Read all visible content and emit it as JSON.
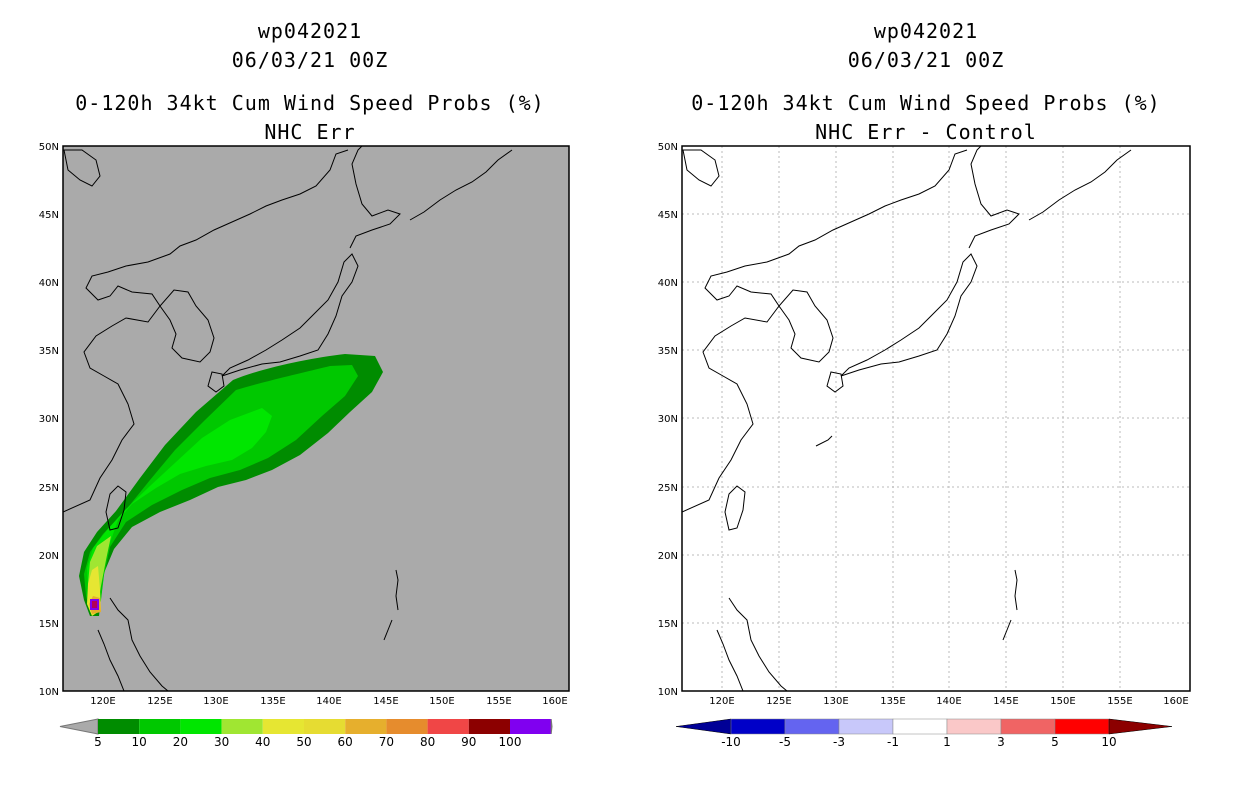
{
  "left": {
    "storm_id": "wp042021",
    "datetime": "06/03/21 00Z",
    "product": "0-120h 34kt Cum Wind Speed Probs (%)",
    "subtitle": "NHC Err",
    "lat_labels": [
      "50N",
      "45N",
      "40N",
      "35N",
      "30N",
      "25N",
      "20N",
      "15N",
      "10N"
    ],
    "lon_labels": [
      "120E",
      "125E",
      "130E",
      "135E",
      "140E",
      "145E",
      "150E",
      "155E",
      "160E"
    ],
    "colorbar": {
      "labels": [
        "5",
        "10",
        "20",
        "30",
        "40",
        "50",
        "60",
        "70",
        "80",
        "90",
        "100"
      ],
      "colors": [
        "#008c00",
        "#00c800",
        "#00e600",
        "#a0e632",
        "#e6e632",
        "#e6dc32",
        "#e6af2d",
        "#e68c2d",
        "#f04646",
        "#8c0000",
        "#8000f0"
      ],
      "end_color": "#aaaaaa"
    },
    "background": "#aaaaaa"
  },
  "right": {
    "storm_id": "wp042021",
    "datetime": "06/03/21 00Z",
    "product": "0-120h 34kt Cum Wind Speed Probs (%)",
    "subtitle": "NHC Err - Control",
    "lat_labels": [
      "50N",
      "45N",
      "40N",
      "35N",
      "30N",
      "25N",
      "20N",
      "15N",
      "10N"
    ],
    "lon_labels": [
      "120E",
      "125E",
      "130E",
      "135E",
      "140E",
      "145E",
      "150E",
      "155E",
      "160E"
    ],
    "colorbar": {
      "labels": [
        "-10",
        "-5",
        "-3",
        "-1",
        "1",
        "3",
        "5",
        "10"
      ],
      "colors": [
        "#0000c8",
        "#6464f0",
        "#c8c8fa",
        "#ffffff",
        "#fac8c8",
        "#f06464",
        "#ff0000"
      ],
      "end_colors": [
        "#000096",
        "#8c0000"
      ]
    },
    "background": "#ffffff"
  }
}
